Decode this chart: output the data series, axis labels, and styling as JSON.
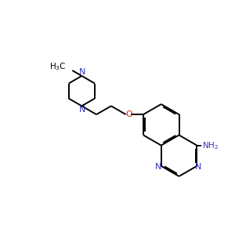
{
  "bg": "#ffffff",
  "bond_color": "#000000",
  "n_color": "#3333bb",
  "o_color": "#cc2200",
  "lw": 1.4,
  "figsize": [
    3.0,
    3.0
  ],
  "dpi": 100,
  "xlim": [
    0.2,
    9.8
  ],
  "ylim": [
    1.5,
    9.5
  ]
}
